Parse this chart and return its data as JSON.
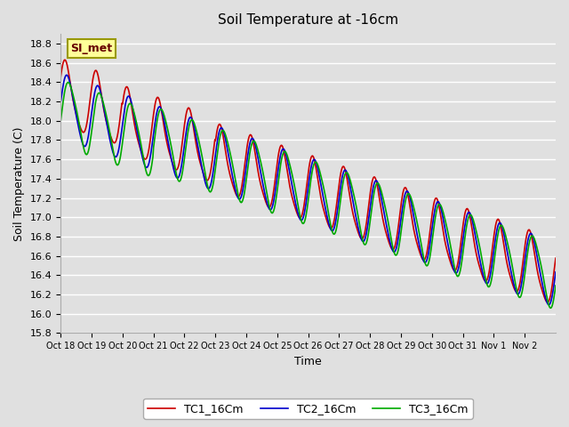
{
  "title": "Soil Temperature at -16cm",
  "xlabel": "Time",
  "ylabel": "Soil Temperature (C)",
  "ylim": [
    15.8,
    18.9
  ],
  "yticks": [
    15.8,
    16.0,
    16.2,
    16.4,
    16.6,
    16.8,
    17.0,
    17.2,
    17.4,
    17.6,
    17.8,
    18.0,
    18.2,
    18.4,
    18.6,
    18.8
  ],
  "xtick_labels": [
    "Oct 18",
    "Oct 19",
    "Oct 20",
    "Oct 21",
    "Oct 22",
    "Oct 23",
    "Oct 24",
    "Oct 25",
    "Oct 26",
    "Oct 27",
    "Oct 28",
    "Oct 29",
    "Oct 30",
    "Oct 31",
    "Nov 1",
    "Nov 2"
  ],
  "legend_entries": [
    "TC1_16Cm",
    "TC2_16Cm",
    "TC3_16Cm"
  ],
  "line_colors": [
    "#cc0000",
    "#0000cc",
    "#00aa00"
  ],
  "line_width": 1.2,
  "bg_color": "#e0e0e0",
  "grid_color": "#ffffff",
  "annotation_text": "SI_met",
  "annotation_bg": "#ffff99",
  "annotation_border": "#999900",
  "n_days": 16,
  "pts_per_day": 48
}
